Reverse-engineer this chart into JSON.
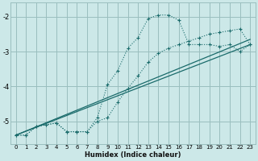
{
  "xlabel": "Humidex (Indice chaleur)",
  "bg_color": "#cce8e8",
  "grid_color": "#9abebe",
  "line_color": "#1a6b6b",
  "xlim": [
    -0.5,
    23.5
  ],
  "ylim": [
    -5.65,
    -1.6
  ],
  "yticks": [
    -5,
    -4,
    -3,
    -2
  ],
  "xticks": [
    0,
    1,
    2,
    3,
    4,
    5,
    6,
    7,
    8,
    9,
    10,
    11,
    12,
    13,
    14,
    15,
    16,
    17,
    18,
    19,
    20,
    21,
    22,
    23
  ],
  "curve1_x": [
    0,
    1,
    2,
    3,
    4,
    5,
    6,
    7,
    8,
    9,
    10,
    11,
    12,
    13,
    14,
    15,
    16,
    17,
    18,
    19,
    20,
    21,
    22,
    23
  ],
  "curve1_y": [
    -5.4,
    -5.4,
    -5.15,
    -5.1,
    -5.05,
    -5.3,
    -5.3,
    -5.3,
    -4.9,
    -3.95,
    -3.55,
    -2.9,
    -2.6,
    -2.05,
    -1.95,
    -1.95,
    -2.1,
    -2.8,
    -2.8,
    -2.8,
    -2.85,
    -2.8,
    -3.0,
    -2.8
  ],
  "curve2_x": [
    0,
    1,
    2,
    3,
    4,
    5,
    6,
    7,
    8,
    9,
    10,
    11,
    12,
    13,
    14,
    15,
    16,
    17,
    18,
    19,
    20,
    21,
    22,
    23
  ],
  "curve2_y": [
    -5.4,
    -5.4,
    -5.15,
    -5.1,
    -5.05,
    -5.3,
    -5.3,
    -5.3,
    -5.0,
    -4.9,
    -4.45,
    -4.05,
    -3.7,
    -3.3,
    -3.05,
    -2.9,
    -2.8,
    -2.7,
    -2.6,
    -2.5,
    -2.45,
    -2.4,
    -2.35,
    -2.8
  ],
  "line1_x": [
    0,
    23
  ],
  "line1_y": [
    -5.4,
    -2.8
  ],
  "line2_x": [
    0,
    23
  ],
  "line2_y": [
    -5.4,
    -2.65
  ]
}
